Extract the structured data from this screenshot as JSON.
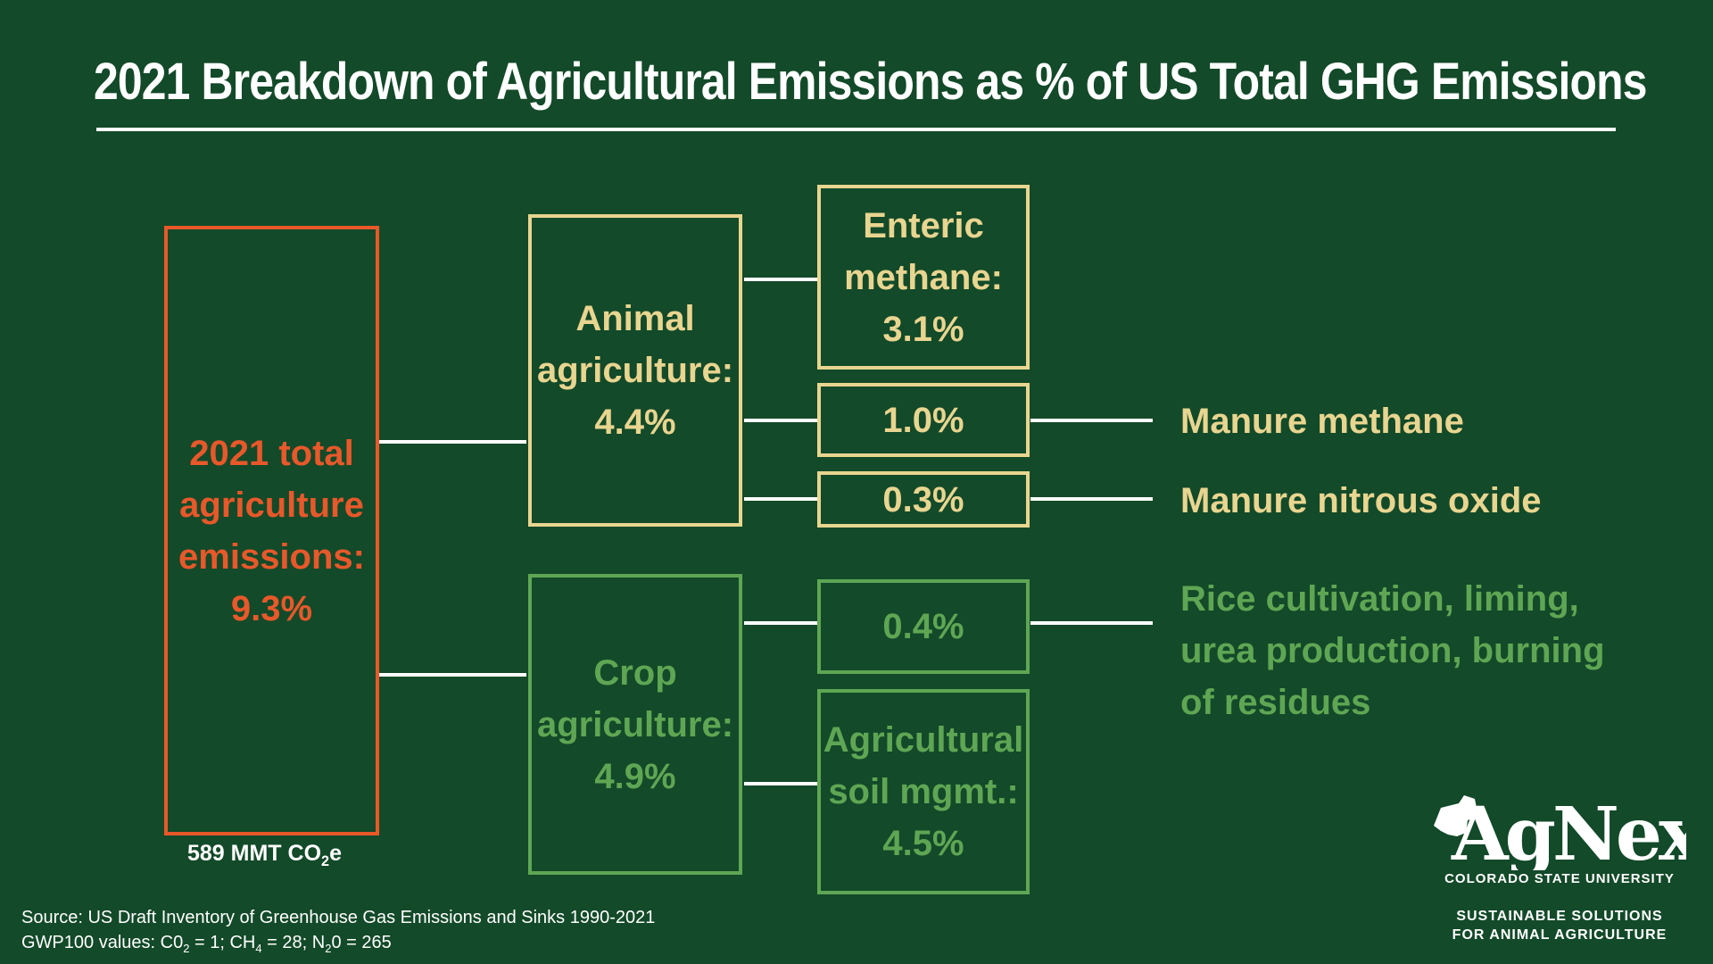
{
  "title": "2021 Breakdown of Agricultural Emissions as % of US Total GHG Emissions",
  "total": {
    "lines": [
      "2021 total",
      "agriculture",
      "emissions:",
      "9.3%"
    ],
    "note_prefix": "589 MMT CO",
    "note_sub": "2",
    "note_suffix": "e"
  },
  "animal": {
    "lines": [
      "Animal",
      "agriculture:",
      "4.4%"
    ]
  },
  "crop": {
    "lines": [
      "Crop",
      "agriculture:",
      "4.9%"
    ]
  },
  "enteric": {
    "lines": [
      "Enteric",
      "methane:",
      "3.1%"
    ]
  },
  "manure_methane": {
    "value": "1.0%",
    "label": "Manure methane"
  },
  "manure_n2o": {
    "value": "0.3%",
    "label": "Manure nitrous oxide"
  },
  "rice": {
    "value": "0.4%",
    "label_lines": [
      "Rice cultivation, liming,",
      "urea production, burning",
      "of residues"
    ]
  },
  "soil": {
    "lines": [
      "Agricultural",
      "soil mgmt.:",
      "4.5%"
    ]
  },
  "source": {
    "line1": "Source: US Draft Inventory of Greenhouse Gas Emissions and Sinks 1990-2021",
    "line2_parts": [
      "GWP100 values: C0",
      "2",
      " = 1; CH",
      "4",
      " = 28; N",
      "2",
      "0 = 265"
    ]
  },
  "logo": {
    "wordmark": "AgNext",
    "university": "COLORADO STATE UNIVERSITY",
    "tagline1": "SUSTAINABLE SOLUTIONS",
    "tagline2": "FOR ANIMAL AGRICULTURE"
  },
  "colors": {
    "background": "#134a29",
    "total": "#e8582a",
    "animal": "#e8d590",
    "crop": "#5fa654",
    "connector": "#ffffff"
  }
}
